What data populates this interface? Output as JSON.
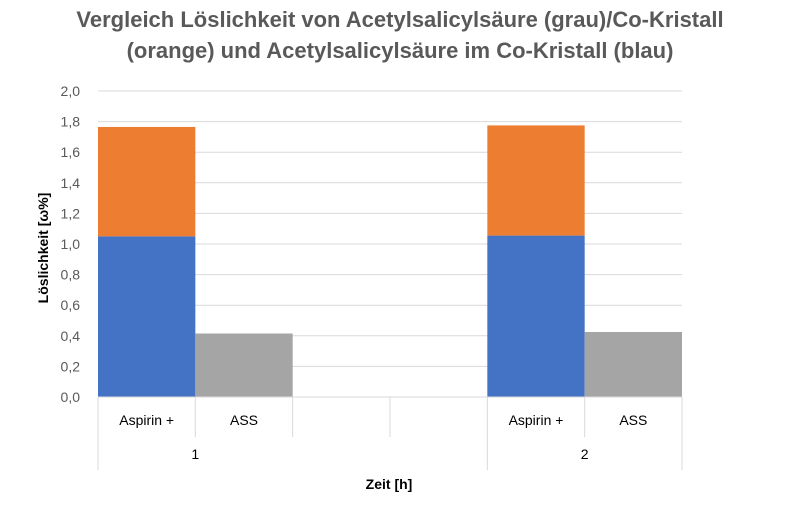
{
  "chart_data": {
    "type": "bar",
    "stacked": true,
    "title_lines": [
      "Vergleich Löslichkeit von Acetylsalicylsäure (grau)/Co-Kristall",
      "(orange) und Acetylsalicylsäure im Co-Kristall (blau)"
    ],
    "xlabel": "Zeit [h]",
    "ylabel": "Löslichkeit  [ω%]",
    "ylim": [
      0,
      2.0
    ],
    "y_ticks": [
      "0,0",
      "0,2",
      "0,4",
      "0,6",
      "0,8",
      "1,0",
      "1,2",
      "1,4",
      "1,6",
      "1,8",
      "2,0"
    ],
    "grid": true,
    "legend": "none",
    "groups": [
      {
        "label": "1",
        "categories": [
          "Aspirin +",
          "ASS",
          "",
          ""
        ]
      },
      {
        "label": "2",
        "categories": [
          "Aspirin +",
          "ASS"
        ]
      }
    ],
    "categories": [
      "Aspirin +",
      "ASS",
      "",
      "",
      "Aspirin +",
      "ASS"
    ],
    "series": [
      {
        "color": "#4472c4",
        "values": [
          1.05,
          0,
          0,
          0,
          1.055,
          0
        ]
      },
      {
        "color": "#ed7d31",
        "values": [
          0.715,
          0,
          0,
          0,
          0.72,
          0
        ]
      },
      {
        "color": "#a5a5a5",
        "values": [
          0,
          0.415,
          0,
          0,
          0,
          0.425
        ]
      }
    ]
  }
}
